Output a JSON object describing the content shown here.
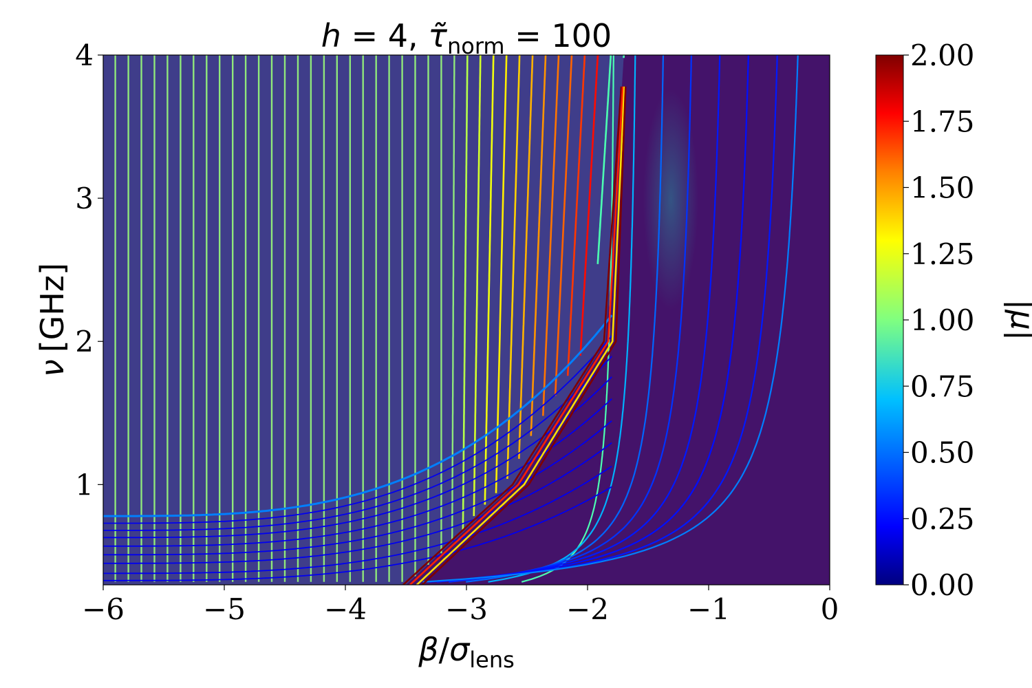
{
  "chart_data": {
    "type": "heatmap",
    "title": "h = 4, τ̃_norm = 100",
    "title_parts": {
      "h": "h",
      "eq1": " = 4, ",
      "tau": "τ̃",
      "norm": "norm",
      "eq2": " = 100"
    },
    "xlabel_parts": {
      "beta": "β",
      "slash": "/",
      "sigma": "σ",
      "lens": "lens"
    },
    "ylabel_parts": {
      "nu": "ν",
      "unit": "[GHz]"
    },
    "colorbar_label": "|μ|",
    "xlim": [
      -6,
      0
    ],
    "ylim": [
      0.3,
      4
    ],
    "clim": [
      0,
      2
    ],
    "x_ticks": [
      "−6",
      "−5",
      "−4",
      "−3",
      "−2",
      "−1",
      "0"
    ],
    "x_tick_values": [
      -6,
      -5,
      -4,
      -3,
      -2,
      -1,
      0
    ],
    "y_ticks": [
      "1",
      "2",
      "3",
      "4"
    ],
    "y_tick_values": [
      1,
      2,
      3,
      4
    ],
    "colorbar_ticks": [
      "0.00",
      "0.25",
      "0.50",
      "0.75",
      "1.00",
      "1.25",
      "1.50",
      "1.75",
      "2.00"
    ],
    "colorbar_tick_values": [
      0,
      0.25,
      0.5,
      0.75,
      1.0,
      1.25,
      1.5,
      1.75,
      2.0
    ],
    "colormap": "jet",
    "colormap_stops": [
      "#00007f",
      "#0000ff",
      "#007fff",
      "#00ffff",
      "#7fff7f",
      "#ffff00",
      "#ff7f00",
      "#ff0000",
      "#7f0000"
    ],
    "background_colors": {
      "multi_image_region": "#3f3d8a",
      "single_image_region": "#44136a"
    },
    "caustic": {
      "beta_at_top": -1.7,
      "beta_at_nu_2": -1.85,
      "beta_at_nu_1": -2.6,
      "beta_at_bottom": -3.5
    },
    "grid": false,
    "series_descriptions": "image-track contours colored by |mu|"
  }
}
